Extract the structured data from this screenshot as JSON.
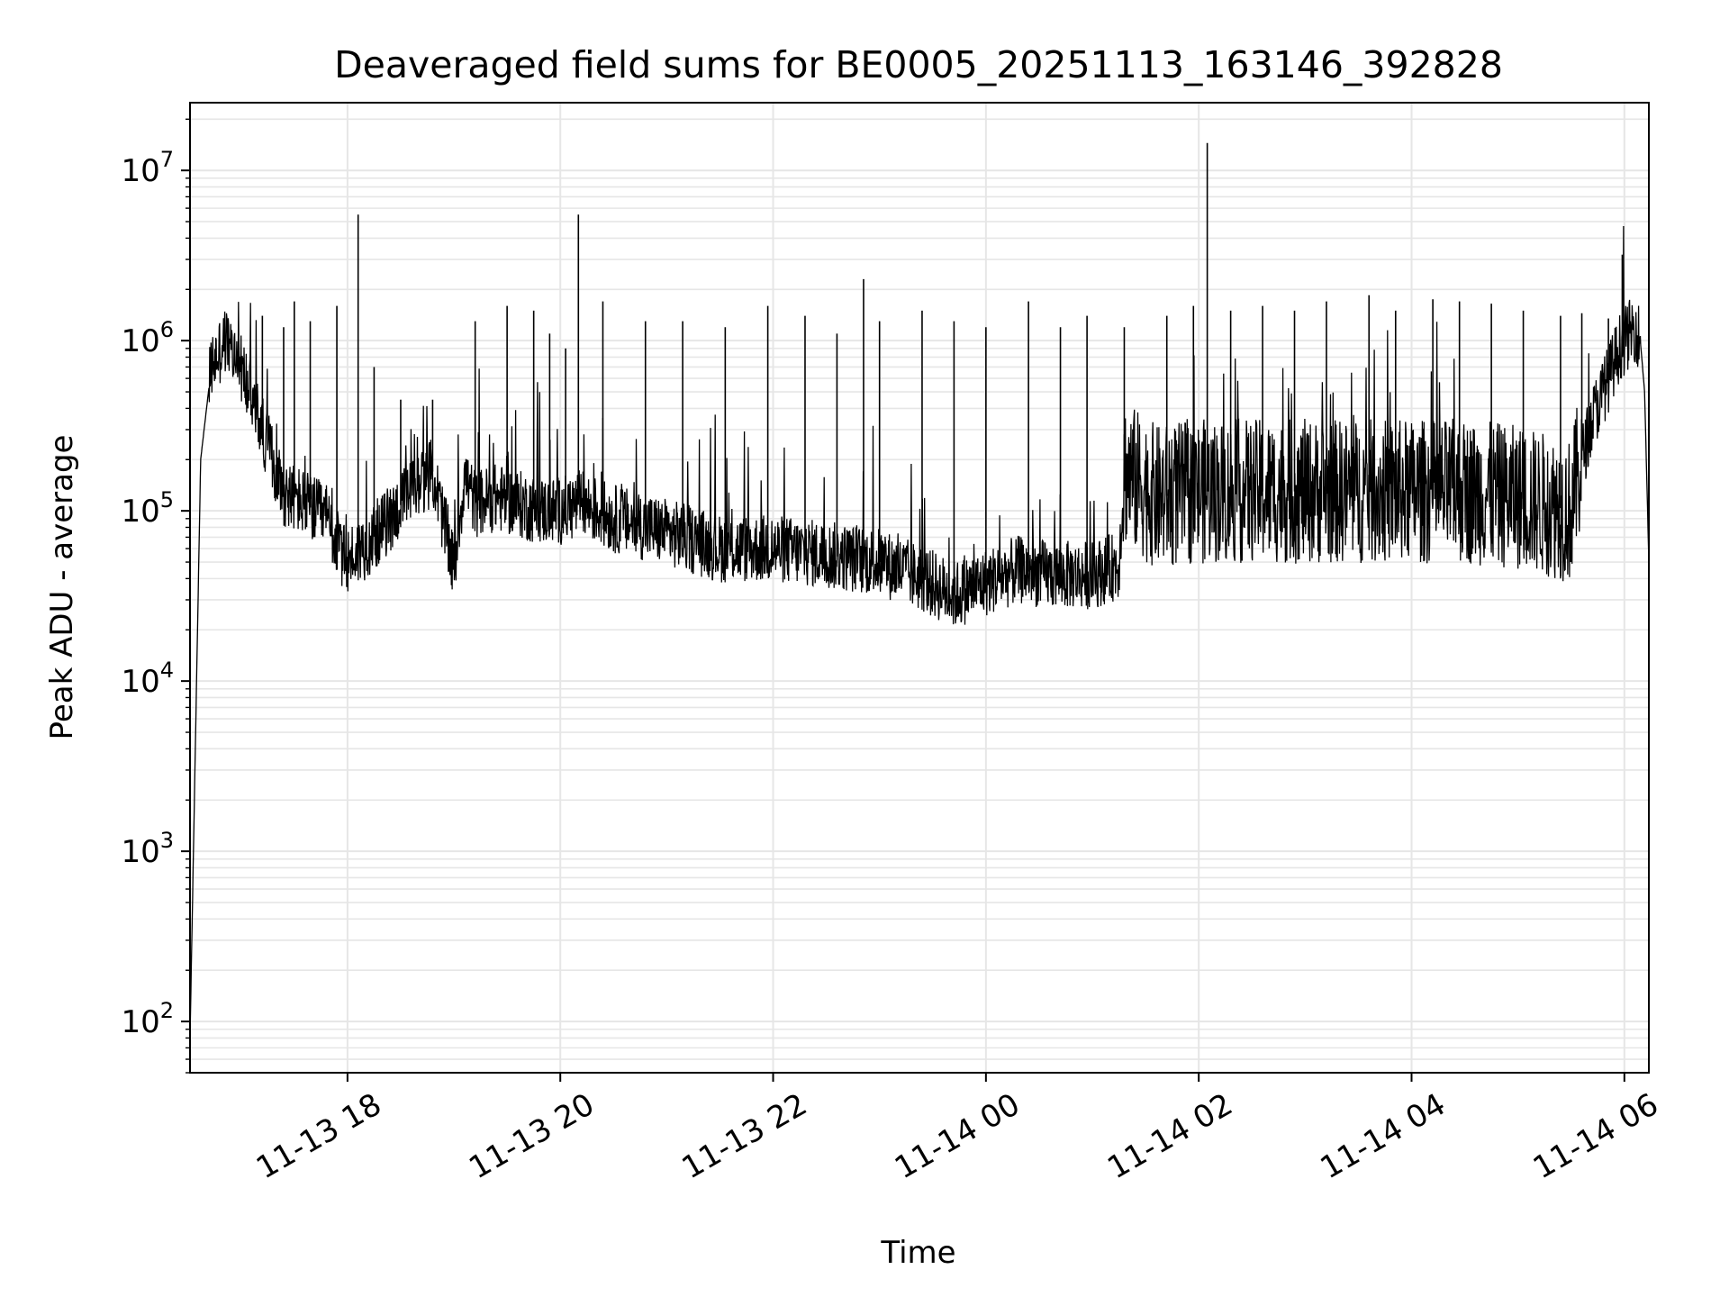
{
  "chart_data": {
    "type": "line",
    "title": "Deaveraged field sums for BE0005_20251113_163146_392828",
    "xlabel": "Time",
    "ylabel": "Peak ADU - average",
    "yscale": "log",
    "ylim": [
      50,
      25000000
    ],
    "xlim_hours": [
      16.52,
      30.23
    ],
    "grid": "on",
    "line_color": "#000000",
    "grid_color": "#e6e6e6",
    "x_ticks": [
      {
        "label": "11-13 18",
        "hour": 18
      },
      {
        "label": "11-13 20",
        "hour": 20
      },
      {
        "label": "11-13 22",
        "hour": 22
      },
      {
        "label": "11-14 00",
        "hour": 24
      },
      {
        "label": "11-14 02",
        "hour": 26
      },
      {
        "label": "11-14 04",
        "hour": 28
      },
      {
        "label": "11-14 06",
        "hour": 30
      }
    ],
    "y_ticks": [
      {
        "base": "10",
        "exp": "2",
        "value": 100
      },
      {
        "base": "10",
        "exp": "3",
        "value": 1000
      },
      {
        "base": "10",
        "exp": "4",
        "value": 10000
      },
      {
        "base": "10",
        "exp": "5",
        "value": 100000
      },
      {
        "base": "10",
        "exp": "6",
        "value": 1000000
      },
      {
        "base": "10",
        "exp": "7",
        "value": 10000000
      }
    ],
    "series": [
      {
        "name": "Peak ADU - average",
        "baseline_hours": [
          16.52,
          16.62,
          16.72,
          16.85,
          17.0,
          17.2,
          17.4,
          17.6,
          17.8,
          17.98,
          18.2,
          18.4,
          18.6,
          18.8,
          19.0,
          19.1,
          19.2,
          19.4,
          19.6,
          19.8,
          20.0,
          20.2,
          20.5,
          21.0,
          21.5,
          22.0,
          22.5,
          23.0,
          23.4,
          23.7,
          23.85,
          24.0,
          24.3,
          24.6,
          25.0,
          25.25,
          25.3,
          25.6,
          26.0,
          26.5,
          27.0,
          27.5,
          28.0,
          28.5,
          29.0,
          29.5,
          29.55,
          29.7,
          29.85,
          29.95,
          30.05,
          30.1,
          30.15,
          30.19,
          30.23
        ],
        "baseline_values": [
          80,
          200000,
          700000,
          1000000,
          700000,
          300000,
          130000,
          110000,
          90000,
          50000,
          65000,
          90000,
          130000,
          170000,
          45000,
          160000,
          110000,
          120000,
          110000,
          100000,
          100000,
          110000,
          90000,
          75000,
          60000,
          60000,
          55000,
          50000,
          40000,
          32000,
          35000,
          38000,
          45000,
          42000,
          42000,
          48000,
          170000,
          120000,
          130000,
          130000,
          130000,
          130000,
          130000,
          130000,
          120000,
          100000,
          150000,
          350000,
          600000,
          900000,
          1100000,
          1200000,
          1000000,
          500000,
          50000
        ],
        "spike_hours": [
          17.2,
          17.4,
          17.5,
          17.65,
          17.9,
          18.1,
          18.25,
          18.5,
          18.8,
          19.2,
          19.5,
          19.75,
          19.9,
          20.05,
          20.17,
          20.4,
          20.8,
          21.15,
          21.55,
          21.95,
          22.3,
          22.6,
          22.85,
          23.0,
          23.4,
          23.7,
          24.0,
          24.4,
          24.7,
          24.95,
          25.3,
          25.7,
          25.95,
          26.08,
          26.3,
          26.6,
          26.9,
          27.2,
          27.6,
          27.85,
          28.2,
          28.45,
          28.75,
          29.05,
          29.4,
          29.6,
          29.85,
          29.98
        ],
        "spike_values": [
          1400000,
          1200000,
          1700000,
          1300000,
          1600000,
          5500000,
          700000,
          450000,
          450000,
          1300000,
          1600000,
          1500000,
          1100000,
          900000,
          5500000,
          1700000,
          1300000,
          1300000,
          1200000,
          1600000,
          1400000,
          1100000,
          2300000,
          1300000,
          1500000,
          1300000,
          1200000,
          1700000,
          1200000,
          1400000,
          1200000,
          1400000,
          1600000,
          14500000,
          1500000,
          1600000,
          1500000,
          1700000,
          1850000,
          1500000,
          1750000,
          1700000,
          1650000,
          1500000,
          1400000,
          1450000,
          1350000,
          3200000
        ]
      }
    ]
  }
}
